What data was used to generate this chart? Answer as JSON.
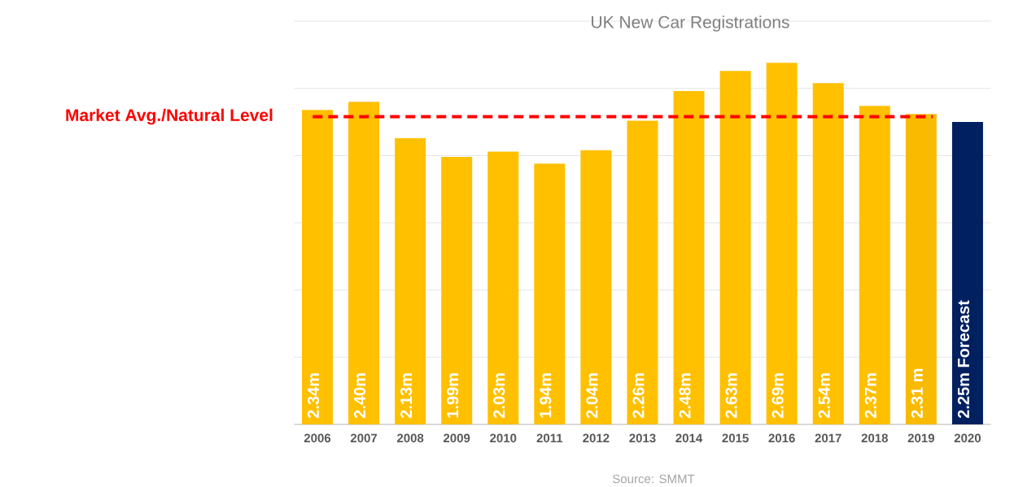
{
  "chart_data": {
    "type": "bar",
    "title": "UK New Car Registrations",
    "categories": [
      "2006",
      "2007",
      "2008",
      "2009",
      "2010",
      "2011",
      "2012",
      "2013",
      "2014",
      "2015",
      "2016",
      "2017",
      "2018",
      "2019",
      "2020"
    ],
    "values": [
      2.34,
      2.4,
      2.13,
      1.99,
      2.03,
      1.94,
      2.04,
      2.26,
      2.48,
      2.63,
      2.69,
      2.54,
      2.37,
      2.31,
      2.25
    ],
    "colors": [
      "#ffc000",
      "#ffc000",
      "#ffc000",
      "#ffc000",
      "#ffc000",
      "#ffc000",
      "#ffc000",
      "#ffc000",
      "#ffc000",
      "#ffc000",
      "#ffc000",
      "#ffc000",
      "#ffc000",
      "#f8bb00",
      "#002060"
    ],
    "value_labels": [
      "2.34m",
      "2.40m",
      "2.13m",
      "1.99m",
      "2.03m",
      "1.94m",
      "2.04m",
      "2.26m",
      "2.48m",
      "2.63m",
      "2.69m",
      "2.54m",
      "2.37m",
      "2.31 m",
      "2.25m Forecast"
    ],
    "grid": "y",
    "tick_labels": "x",
    "ref_lines": [
      {
        "axis": "y",
        "value": 2.29,
        "label": "Market Avg./Natural Level",
        "color": "#ff0000",
        "line_style": "dashed"
      }
    ],
    "annotations": [
      "Source: SMMT"
    ]
  }
}
